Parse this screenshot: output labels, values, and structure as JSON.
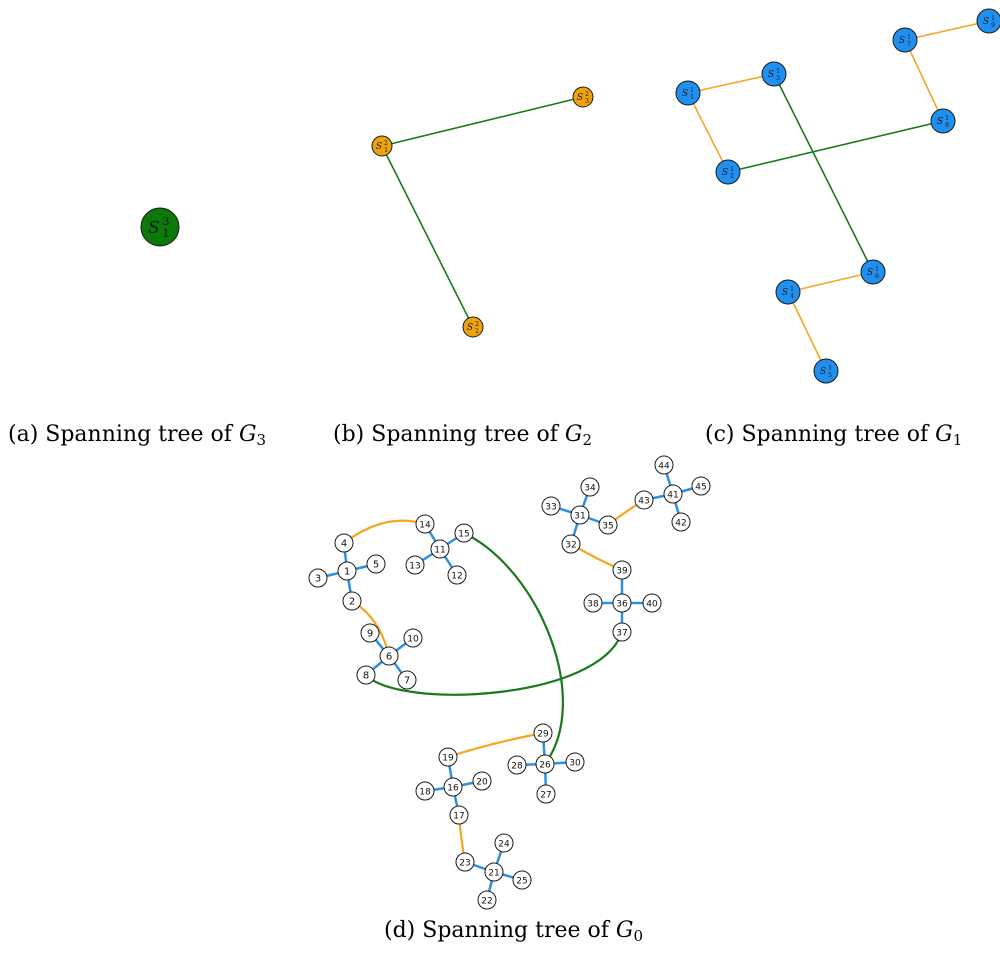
{
  "colors": {
    "level3_node": "#0b7a0b",
    "level2_node": "#f0a20a",
    "level1_node": "#1f8ff0",
    "level0_node": "#ffffff",
    "inter_level2_edge": "#1a7a1a",
    "inter_level1_edge": "#f5a623",
    "intra_edge": "#2f8fe0"
  },
  "captions": [
    {
      "id": "a",
      "text": "(a) Spanning tree of ",
      "var": "G",
      "sub": "3"
    },
    {
      "id": "b",
      "text": "(b) Spanning tree of ",
      "var": "G",
      "sub": "2"
    },
    {
      "id": "c",
      "text": "(c) Spanning tree of ",
      "var": "G",
      "sub": "1"
    },
    {
      "id": "d",
      "text": "(d) Spanning tree of ",
      "var": "G",
      "sub": "0"
    }
  ],
  "panels": {
    "a": {
      "nodes": [
        {
          "id": "S3_1",
          "base": "S",
          "sup": "3",
          "sub": "1"
        }
      ],
      "edges": []
    },
    "b": {
      "nodes": [
        {
          "id": "S2_1",
          "base": "S",
          "sup": "2",
          "sub": "1"
        },
        {
          "id": "S2_2",
          "base": "S",
          "sup": "2",
          "sub": "2"
        },
        {
          "id": "S2_3",
          "base": "S",
          "sup": "2",
          "sub": "3"
        }
      ],
      "edges": [
        [
          "S2_1",
          "S2_3"
        ],
        [
          "S2_1",
          "S2_2"
        ]
      ]
    },
    "c": {
      "nodes": [
        {
          "id": "S1_1",
          "base": "S",
          "sup": "1",
          "sub": "1"
        },
        {
          "id": "S1_2",
          "base": "S",
          "sup": "1",
          "sub": "2"
        },
        {
          "id": "S1_3",
          "base": "S",
          "sup": "1",
          "sub": "3"
        },
        {
          "id": "S1_4",
          "base": "S",
          "sup": "1",
          "sub": "4"
        },
        {
          "id": "S1_5",
          "base": "S",
          "sup": "1",
          "sub": "5"
        },
        {
          "id": "S1_6",
          "base": "S",
          "sup": "1",
          "sub": "6"
        },
        {
          "id": "S1_7",
          "base": "S",
          "sup": "1",
          "sub": "7"
        },
        {
          "id": "S1_8",
          "base": "S",
          "sup": "1",
          "sub": "8"
        },
        {
          "id": "S1_9",
          "base": "S",
          "sup": "1",
          "sub": "9"
        }
      ],
      "edges_orange": [
        [
          "S1_1",
          "S1_3"
        ],
        [
          "S1_1",
          "S1_2"
        ],
        [
          "S1_7",
          "S1_9"
        ],
        [
          "S1_7",
          "S1_8"
        ],
        [
          "S1_4",
          "S1_6"
        ],
        [
          "S1_4",
          "S1_5"
        ]
      ],
      "edges_green": [
        [
          "S1_3",
          "S1_6"
        ],
        [
          "S1_2",
          "S1_8"
        ]
      ]
    },
    "d": {
      "nodes": [
        "1",
        "2",
        "3",
        "4",
        "5",
        "6",
        "7",
        "8",
        "9",
        "10",
        "11",
        "12",
        "13",
        "14",
        "15",
        "16",
        "17",
        "18",
        "19",
        "20",
        "21",
        "22",
        "23",
        "24",
        "25",
        "26",
        "27",
        "28",
        "29",
        "30",
        "31",
        "32",
        "33",
        "34",
        "35",
        "36",
        "37",
        "38",
        "39",
        "40",
        "41",
        "42",
        "43",
        "44",
        "45"
      ],
      "edges_blue": [
        [
          "1",
          "4"
        ],
        [
          "1",
          "3"
        ],
        [
          "1",
          "5"
        ],
        [
          "1",
          "2"
        ],
        [
          "11",
          "14"
        ],
        [
          "11",
          "15"
        ],
        [
          "11",
          "13"
        ],
        [
          "11",
          "12"
        ],
        [
          "6",
          "9"
        ],
        [
          "6",
          "10"
        ],
        [
          "6",
          "8"
        ],
        [
          "6",
          "7"
        ],
        [
          "31",
          "34"
        ],
        [
          "31",
          "33"
        ],
        [
          "31",
          "35"
        ],
        [
          "31",
          "32"
        ],
        [
          "41",
          "44"
        ],
        [
          "41",
          "45"
        ],
        [
          "41",
          "43"
        ],
        [
          "41",
          "42"
        ],
        [
          "36",
          "39"
        ],
        [
          "36",
          "38"
        ],
        [
          "36",
          "40"
        ],
        [
          "36",
          "37"
        ],
        [
          "16",
          "19"
        ],
        [
          "16",
          "18"
        ],
        [
          "16",
          "20"
        ],
        [
          "16",
          "17"
        ],
        [
          "26",
          "29"
        ],
        [
          "26",
          "28"
        ],
        [
          "26",
          "30"
        ],
        [
          "26",
          "27"
        ],
        [
          "21",
          "24"
        ],
        [
          "21",
          "23"
        ],
        [
          "21",
          "25"
        ],
        [
          "21",
          "22"
        ]
      ],
      "edges_orange": [
        [
          "4",
          "14"
        ],
        [
          "2",
          "6"
        ],
        [
          "35",
          "43"
        ],
        [
          "32",
          "39"
        ],
        [
          "19",
          "29"
        ],
        [
          "17",
          "23"
        ]
      ],
      "edges_green": [
        [
          "15",
          "26"
        ],
        [
          "8",
          "37"
        ]
      ]
    }
  }
}
